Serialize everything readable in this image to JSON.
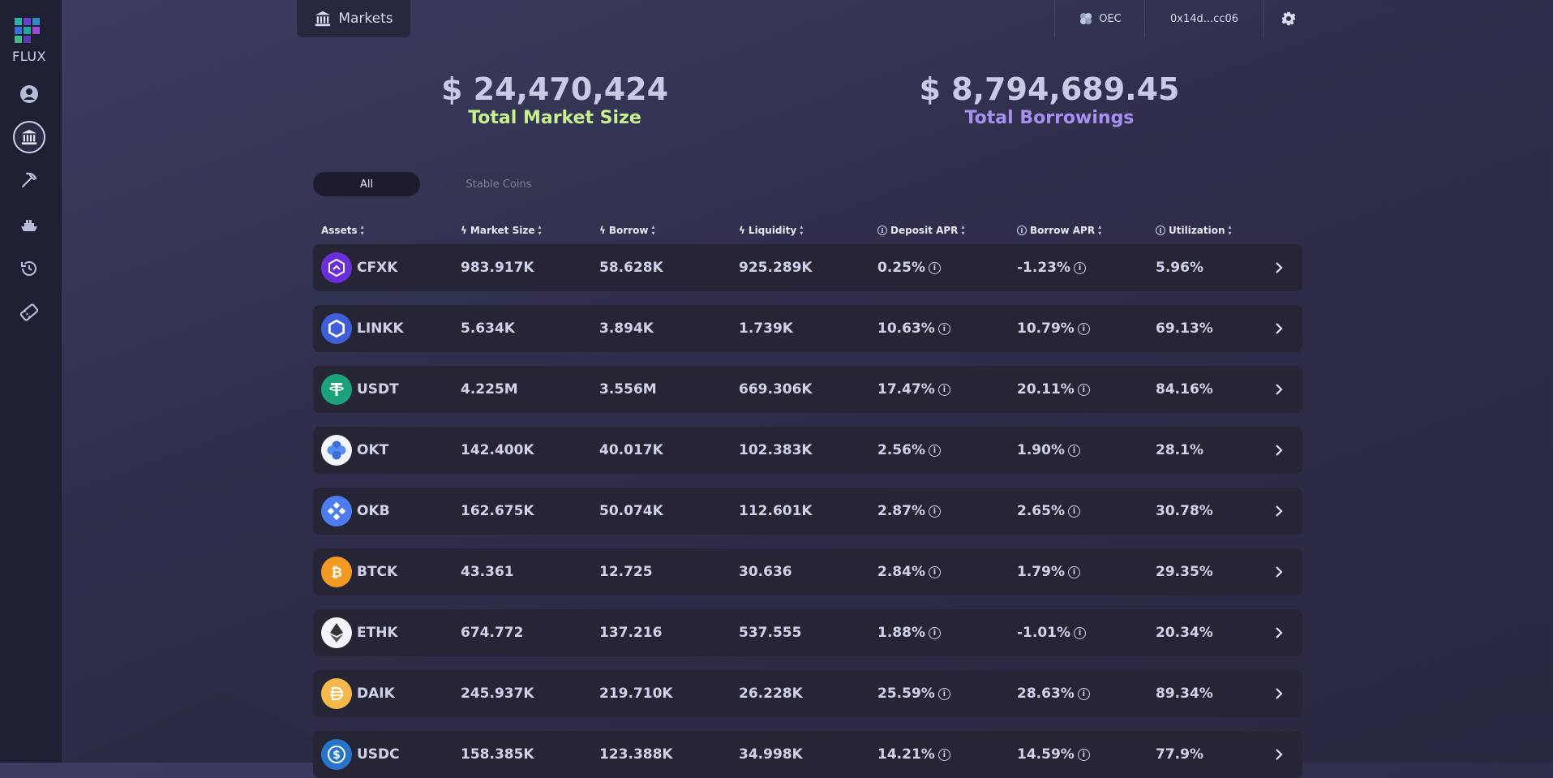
{
  "sidebar": {
    "logo_text": "FLUX"
  },
  "header": {
    "tab_label": "Markets",
    "network_label": "OEC",
    "account_label": "0x14d...cc06"
  },
  "stats": {
    "market_size_value": "$ 24,470,424",
    "market_size_label": "Total Market Size",
    "market_size_color": "#c8f08c",
    "borrowings_value": "$ 8,794,689.45",
    "borrowings_label": "Total Borrowings",
    "borrowings_color": "#a98ff0"
  },
  "filters": {
    "all": "All",
    "stable": "Stable Coins"
  },
  "table": {
    "headers": [
      "Assets",
      "Market Size",
      "Borrow",
      "Liquidity",
      "Deposit APR",
      "Borrow APR",
      "Utilization"
    ],
    "rows": [
      {
        "asset": "CFXK",
        "market_size": "983.917K",
        "borrow": "58.628K",
        "liquidity": "925.289K",
        "deposit_apr": "0.25%",
        "borrow_apr": "-1.23%",
        "utilization": "5.96%"
      },
      {
        "asset": "LINKK",
        "market_size": "5.634K",
        "borrow": "3.894K",
        "liquidity": "1.739K",
        "deposit_apr": "10.63%",
        "borrow_apr": "10.79%",
        "utilization": "69.13%"
      },
      {
        "asset": "USDT",
        "market_size": "4.225M",
        "borrow": "3.556M",
        "liquidity": "669.306K",
        "deposit_apr": "17.47%",
        "borrow_apr": "20.11%",
        "utilization": "84.16%"
      },
      {
        "asset": "OKT",
        "market_size": "142.400K",
        "borrow": "40.017K",
        "liquidity": "102.383K",
        "deposit_apr": "2.56%",
        "borrow_apr": "1.90%",
        "utilization": "28.1%"
      },
      {
        "asset": "OKB",
        "market_size": "162.675K",
        "borrow": "50.074K",
        "liquidity": "112.601K",
        "deposit_apr": "2.87%",
        "borrow_apr": "2.65%",
        "utilization": "30.78%"
      },
      {
        "asset": "BTCK",
        "market_size": "43.361",
        "borrow": "12.725",
        "liquidity": "30.636",
        "deposit_apr": "2.84%",
        "borrow_apr": "1.79%",
        "utilization": "29.35%"
      },
      {
        "asset": "ETHK",
        "market_size": "674.772",
        "borrow": "137.216",
        "liquidity": "537.555",
        "deposit_apr": "1.88%",
        "borrow_apr": "-1.01%",
        "utilization": "20.34%"
      },
      {
        "asset": "DAIK",
        "market_size": "245.937K",
        "borrow": "219.710K",
        "liquidity": "26.228K",
        "deposit_apr": "25.59%",
        "borrow_apr": "28.63%",
        "utilization": "89.34%"
      },
      {
        "asset": "USDC",
        "market_size": "158.385K",
        "borrow": "123.388K",
        "liquidity": "34.998K",
        "deposit_apr": "14.21%",
        "borrow_apr": "14.59%",
        "utilization": "77.9%"
      }
    ]
  }
}
